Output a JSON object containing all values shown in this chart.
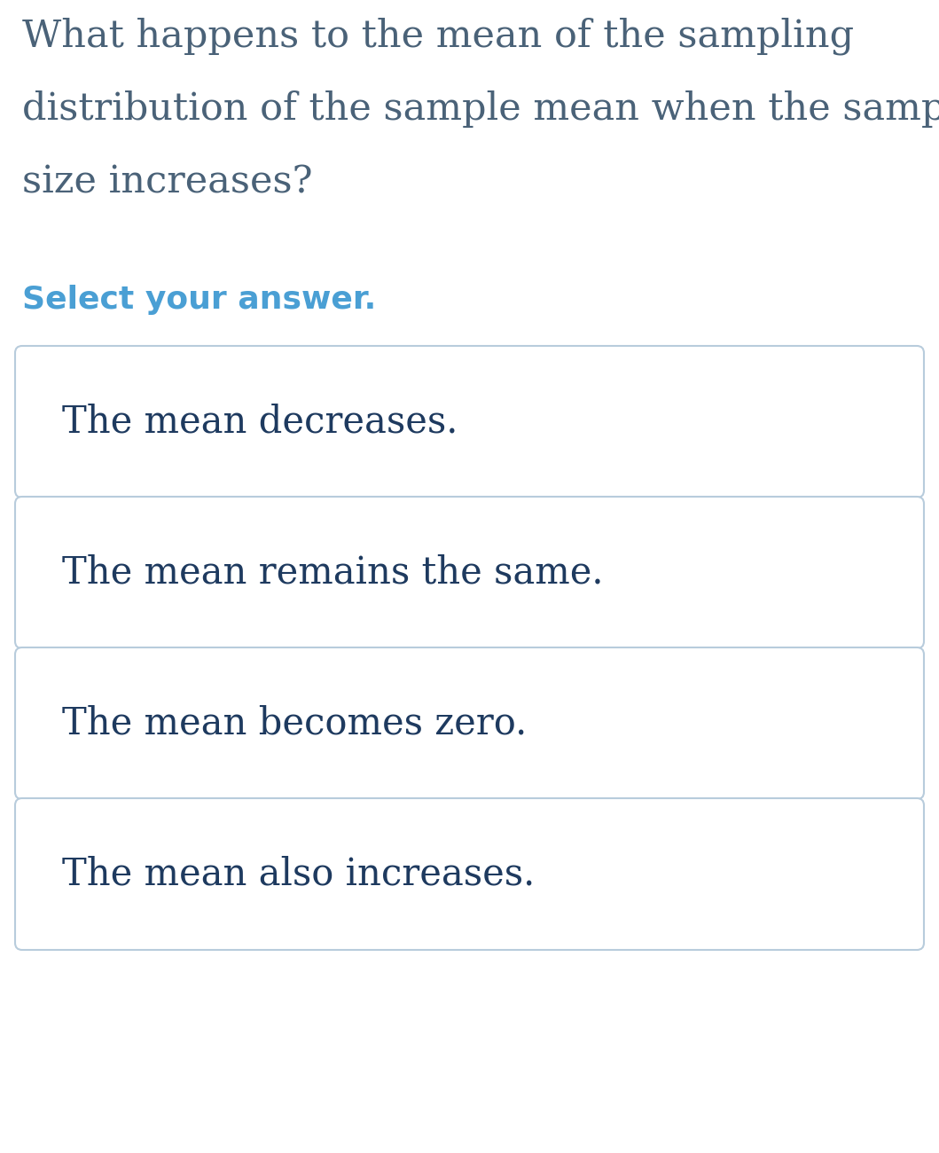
{
  "question_lines": [
    "What happens to the mean of the sampling",
    "distribution of the sample mean when the sample",
    "size increases?"
  ],
  "select_text": "Select your answer.",
  "options": [
    "The mean decreases.",
    "The mean remains the same.",
    "The mean becomes zero.",
    "The mean also increases."
  ],
  "background_color": "#ffffff",
  "question_color": "#4a6278",
  "select_color": "#4a9fd4",
  "option_text_color": "#1e3a5f",
  "box_border_color": "#b8ccdc",
  "box_fill_color": "#ffffff",
  "question_fontsize": 31,
  "select_fontsize": 26,
  "option_fontsize": 30
}
